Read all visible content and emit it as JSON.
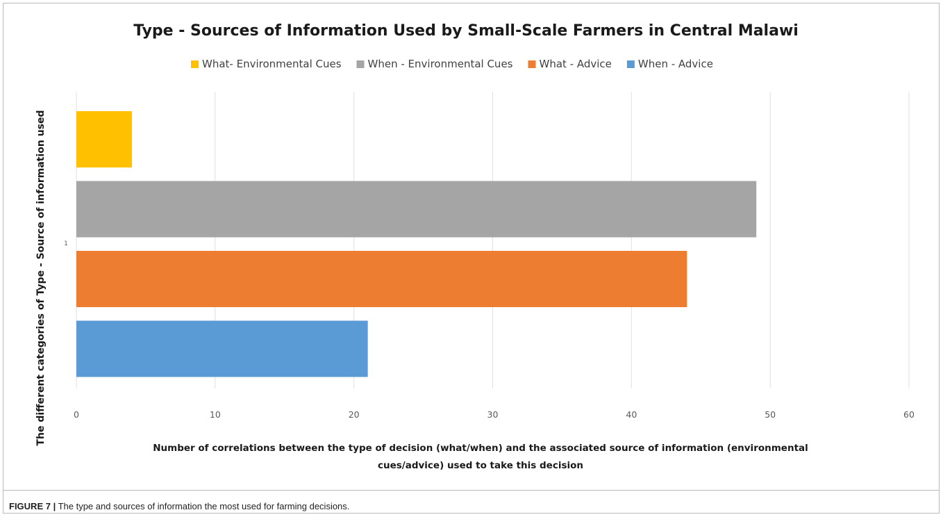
{
  "chart_data": {
    "type": "bar",
    "orientation": "horizontal",
    "title": "Type - Sources of Information Used by Small-Scale Farmers in Central Malawi",
    "categories": [
      "1"
    ],
    "series": [
      {
        "name": "What- Environmental Cues",
        "values": [
          4
        ],
        "color": "#ffc000"
      },
      {
        "name": "When - Environmental Cues",
        "values": [
          49
        ],
        "color": "#a5a5a5"
      },
      {
        "name": "What - Advice",
        "values": [
          44
        ],
        "color": "#ed7d31"
      },
      {
        "name": "When - Advice",
        "values": [
          21
        ],
        "color": "#5b9bd5"
      }
    ],
    "xlabel_lines": [
      "Number of correlations between  the type of decision (what/when) and the associated source  of information (environmental",
      "cues/advice) used to take this decision"
    ],
    "ylabel": "The different categories of Type - Source of  information  used",
    "xlim": [
      0,
      60
    ],
    "xticks": [
      0,
      10,
      20,
      30,
      40,
      50,
      60
    ],
    "grid": true,
    "legend_position": "top"
  },
  "caption": {
    "label": "FIGURE 7 |",
    "text": " The type and sources of information the most used for farming decisions."
  }
}
